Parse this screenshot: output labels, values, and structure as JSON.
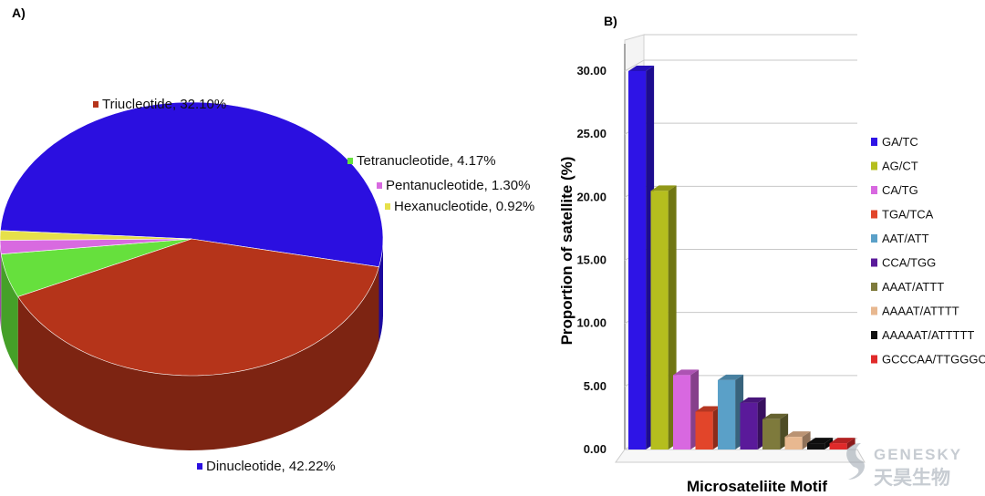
{
  "panel_a": "A)",
  "panel_b": "B)",
  "watermark": {
    "en": "GENESKY",
    "zh": "天昊生物"
  },
  "chart_data": [
    {
      "type": "pie",
      "labels": [
        "Dinucleotide",
        "Triucleotide",
        "Tetranucleotide",
        "Pentanucleotide",
        "Hexanucleotide"
      ],
      "values": [
        42.22,
        32.1,
        4.17,
        1.3,
        0.92
      ],
      "label_text": [
        "Dinucleotide, 42.22%",
        "Triucleotide, 32.10%",
        "Tetranucleotide, 4.17%",
        "Pentanucleotide, 1.30%",
        "Hexanucleotide, 0.92%"
      ],
      "colors": [
        "#2b0fe0",
        "#b5341a",
        "#66e03d",
        "#d86ae0",
        "#e6e04a"
      ],
      "side_colors": [
        "#1c0a9e",
        "#7d2412",
        "#45a028",
        "#9c4aa3",
        "#a8a431"
      ]
    },
    {
      "type": "bar",
      "categories": [
        "GA/TC",
        "AG/CT",
        "CA/TG",
        "TGA/TCA",
        "AAT/ATT",
        "CCA/TGG",
        "AAAT/ATTT",
        "AAAAT/ATTTT",
        "AAAAAT/ATTTTT",
        "GCCCAA/TTGGGC"
      ],
      "values": [
        30.0,
        20.5,
        5.9,
        3.0,
        5.5,
        3.7,
        2.4,
        1.0,
        0.5,
        0.5
      ],
      "colors": [
        "#2e14e6",
        "#b5be1e",
        "#d868e0",
        "#e2452a",
        "#5aa0c8",
        "#5a1a9a",
        "#7e7a3c",
        "#e8b890",
        "#111111",
        "#e02a2a"
      ],
      "yticks": [
        "0.00",
        "5.00",
        "10.00",
        "15.00",
        "20.00",
        "25.00",
        "30.00"
      ],
      "ylim": [
        0,
        30
      ],
      "ylabel": "Proportion of satellite (%)",
      "xlabel": "Microsateliite Motif",
      "legend_position": "right"
    }
  ]
}
